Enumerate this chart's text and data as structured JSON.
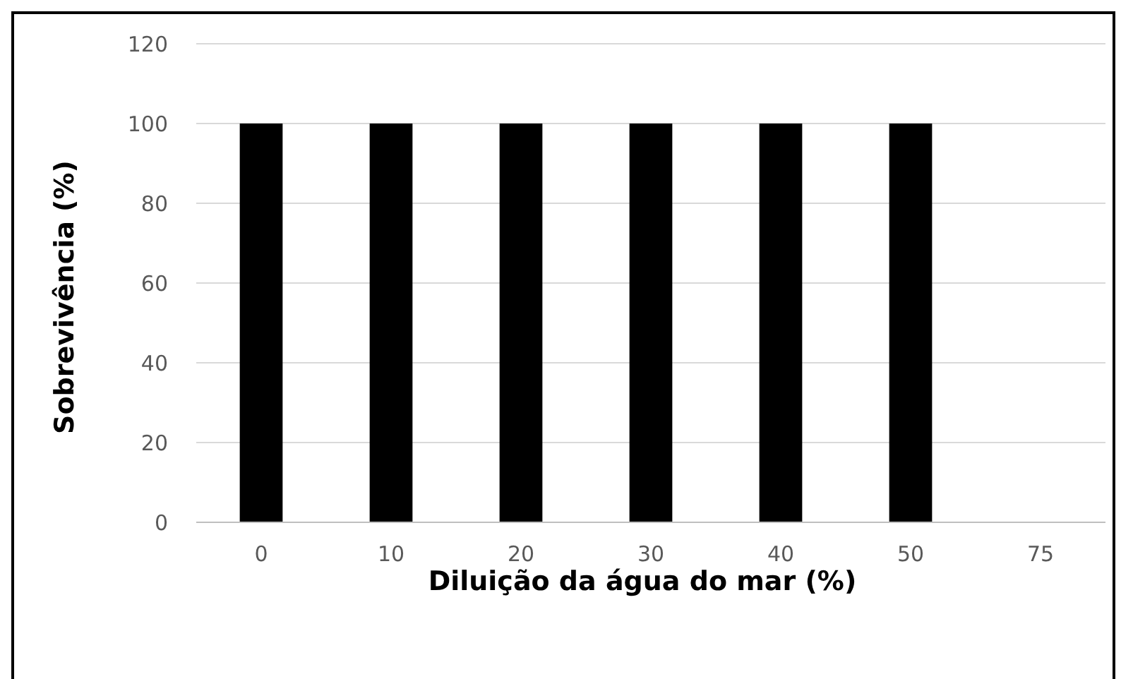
{
  "chart_data": {
    "type": "bar",
    "xlabel": "Diluição da água do mar (%)",
    "ylabel": "Sobrevivência (%)",
    "categories": [
      "0",
      "10",
      "20",
      "30",
      "40",
      "50",
      "75"
    ],
    "values": [
      100,
      100,
      100,
      100,
      100,
      100,
      0
    ],
    "color": "#000000",
    "ylim": [
      0,
      120
    ],
    "yticks": [
      0,
      20,
      40,
      60,
      80,
      100,
      120
    ],
    "grid": "y"
  }
}
